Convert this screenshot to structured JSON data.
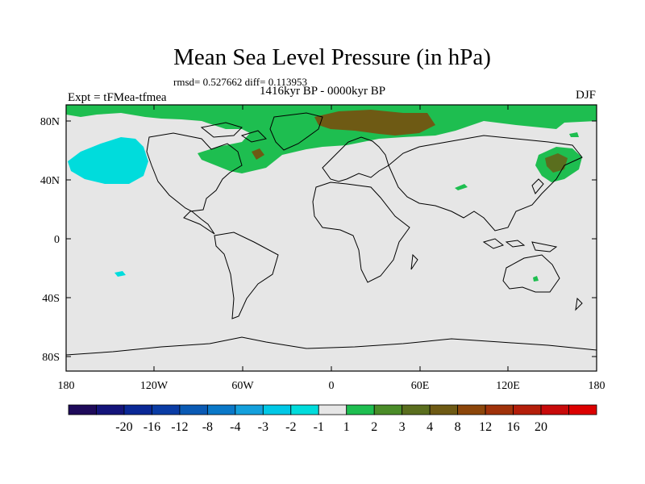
{
  "header": {
    "title": "Mean Sea Level Pressure (in hPa)",
    "stats": "rmsd= 0.527662 diff= 0.113953",
    "period": "1416kyr BP - 0000kyr BP",
    "experiment": "Expt = tFMea-tfmea",
    "season": "DJF"
  },
  "map": {
    "lat_labels": [
      "80N",
      "40N",
      "0",
      "40S",
      "80S"
    ],
    "lon_labels": [
      "180",
      "120W",
      "60W",
      "0",
      "60E",
      "120E",
      "180"
    ],
    "background_color": "#e6e6e6",
    "coast_color": "#000000"
  },
  "colorbar": {
    "colors": [
      "#1e0a5a",
      "#14147a",
      "#0a2896",
      "#0a3ca5",
      "#0a5ab4",
      "#0a78c8",
      "#14a0dc",
      "#00c8e6",
      "#00dcdc",
      "#e6e6e6",
      "#1ebe50",
      "#4a8c28",
      "#5a6e1e",
      "#6e5a14",
      "#8c460a",
      "#a0320a",
      "#b41e0a",
      "#c80a0a",
      "#dc0000"
    ],
    "labels": [
      "-20",
      "-16",
      "-12",
      "-8",
      "-4",
      "-3",
      "-2",
      "-1",
      "1",
      "2",
      "3",
      "4",
      "8",
      "12",
      "16",
      "20"
    ]
  }
}
